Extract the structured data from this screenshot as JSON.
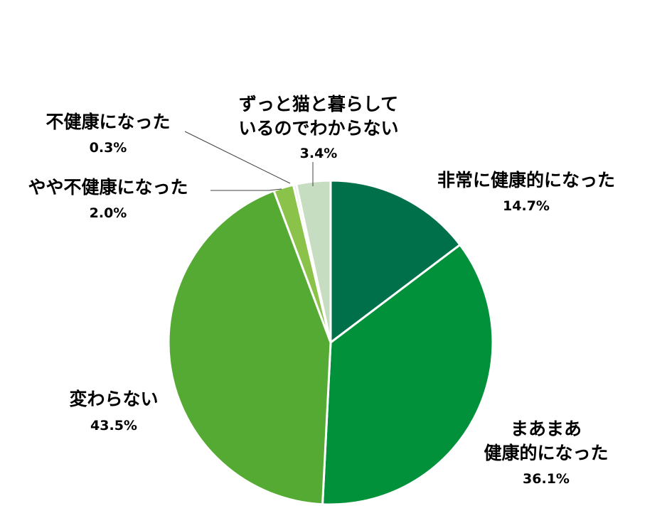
{
  "chart_data": {
    "type": "pie",
    "start_angle_deg": 0,
    "direction": "clockwise",
    "slices": [
      {
        "label_lines": [
          "非常に健康的になった"
        ],
        "value": 14.7,
        "value_label": "14.7%",
        "color": "#00704A"
      },
      {
        "label_lines": [
          "まあまあ",
          "健康的になった"
        ],
        "value": 36.1,
        "value_label": "36.1%",
        "color": "#00913A"
      },
      {
        "label_lines": [
          "変わらない"
        ],
        "value": 43.5,
        "value_label": "43.5%",
        "color": "#55AA34"
      },
      {
        "label_lines": [
          "やや不健康になった"
        ],
        "value": 2.0,
        "value_label": "2.0%",
        "color": "#8BC34A"
      },
      {
        "label_lines": [
          "不健康になった"
        ],
        "value": 0.3,
        "value_label": "0.3%",
        "color": "#E3EFD9"
      },
      {
        "label_lines": [
          "ずっと猫と暮らして",
          "いるのでわからない"
        ],
        "value": 3.4,
        "value_label": "3.4%",
        "color": "#C7DDC2"
      }
    ]
  }
}
